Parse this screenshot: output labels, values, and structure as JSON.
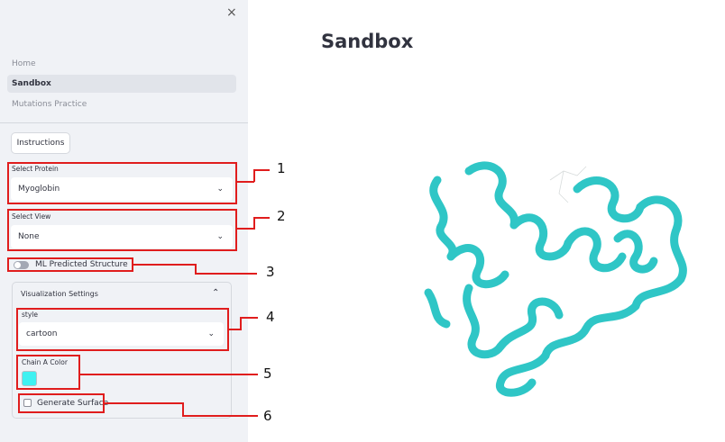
{
  "sidebar": {
    "close_glyph": "×",
    "nav": [
      "Home",
      "Sandbox",
      "Mutations Practice"
    ],
    "instructions_button": "Instructions",
    "select_protein": {
      "label": "Select Protein",
      "value": "Myoglobin"
    },
    "select_view": {
      "label": "Select View",
      "value": "None"
    },
    "ml_toggle": {
      "label": "ML Predicted Structure",
      "checked": false
    },
    "visualization": {
      "title": "Visualization Settings",
      "style": {
        "label": "style",
        "value": "cartoon"
      },
      "chain_color": {
        "label": "Chain A Color",
        "value": "#3ff1f1"
      },
      "surface": {
        "label": "Generate Surface",
        "checked": false
      }
    }
  },
  "main": {
    "title": "Sandbox",
    "protein_color": "#2fc6c6"
  },
  "annotations": [
    "1",
    "2",
    "3",
    "4",
    "5",
    "6"
  ],
  "icons": {
    "chevron": "⌄",
    "collapse": "⌃"
  }
}
